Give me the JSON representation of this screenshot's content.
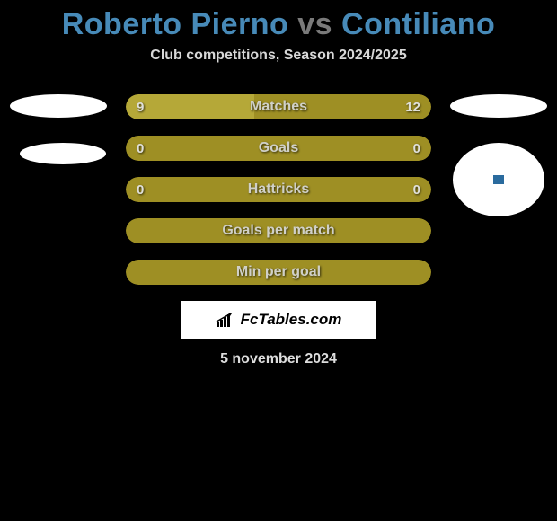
{
  "title": {
    "player1": "Roberto Pierno",
    "vs": "vs",
    "player2": "Contiliano",
    "player1_color": "#478ab8",
    "player2_color": "#478ab8",
    "vs_color": "#7a7a7a"
  },
  "subtitle": "Club competitions, Season 2024/2025",
  "colors": {
    "background": "#000000",
    "bar_fill": "#9e8f24",
    "bar_accent_light": "#b5a838",
    "text_light": "#d8d8d8",
    "white": "#ffffff"
  },
  "stats": [
    {
      "label": "Matches",
      "left_value": "9",
      "right_value": "12",
      "left_pct": 42,
      "right_pct": 58,
      "left_color": "#b5a838",
      "right_color": "#9e8f24",
      "show_values": true
    },
    {
      "label": "Goals",
      "left_value": "0",
      "right_value": "0",
      "left_pct": 50,
      "right_pct": 50,
      "left_color": "#9e8f24",
      "right_color": "#9e8f24",
      "show_values": true
    },
    {
      "label": "Hattricks",
      "left_value": "0",
      "right_value": "0",
      "left_pct": 50,
      "right_pct": 50,
      "left_color": "#9e8f24",
      "right_color": "#9e8f24",
      "show_values": true
    },
    {
      "label": "Goals per match",
      "left_value": "",
      "right_value": "",
      "left_pct": 100,
      "right_pct": 0,
      "left_color": "#9e8f24",
      "right_color": "#9e8f24",
      "show_values": false
    },
    {
      "label": "Min per goal",
      "left_value": "",
      "right_value": "",
      "left_pct": 100,
      "right_pct": 0,
      "left_color": "#9e8f24",
      "right_color": "#9e8f24",
      "show_values": false
    }
  ],
  "watermark": "FcTables.com",
  "date": "5 november 2024"
}
